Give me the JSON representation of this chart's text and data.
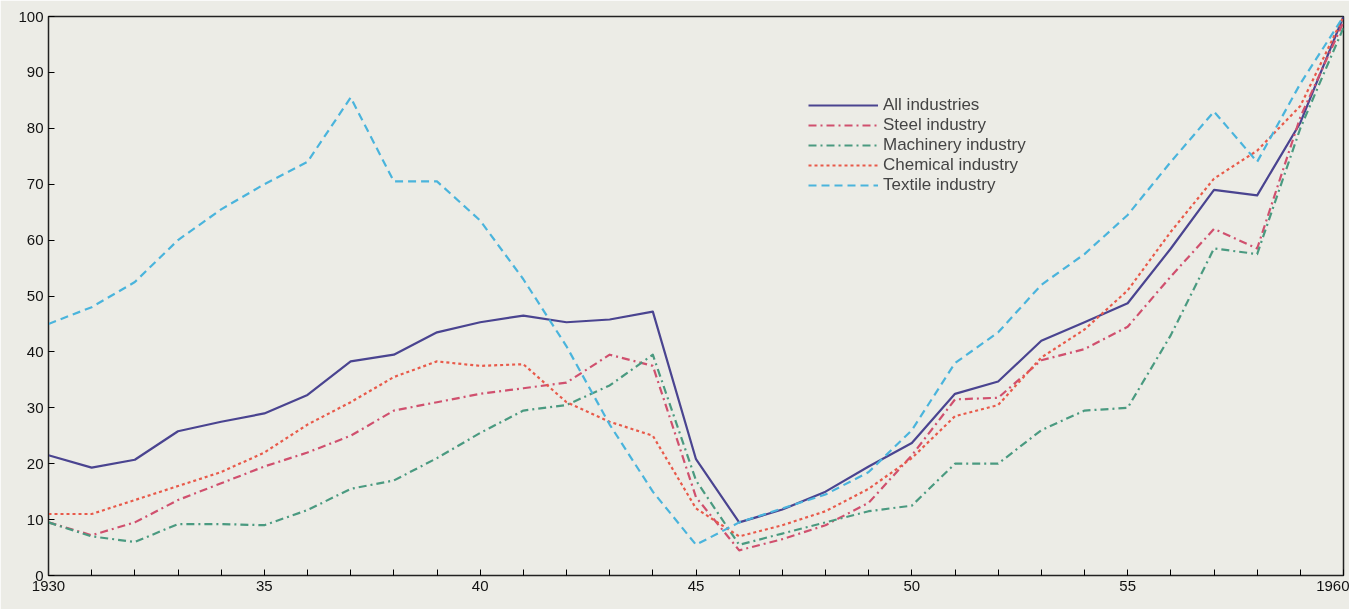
{
  "chart_data": {
    "type": "line",
    "x": [
      1930,
      1931,
      1932,
      1933,
      1934,
      1935,
      1936,
      1937,
      1938,
      1939,
      1940,
      1941,
      1942,
      1943,
      1944,
      1945,
      1946,
      1947,
      1948,
      1949,
      1950,
      1951,
      1952,
      1953,
      1954,
      1955,
      1956,
      1957,
      1958,
      1959,
      1960
    ],
    "series": [
      {
        "name": "All industries",
        "color": "#4a4490",
        "line_style": "solid",
        "values": [
          21.5,
          19.3,
          20.7,
          25.8,
          27.5,
          29,
          32.3,
          38.3,
          39.5,
          43.5,
          45.3,
          46.5,
          45.3,
          45.8,
          47.2,
          20.8,
          9.5,
          11.8,
          15,
          19.5,
          23.7,
          32.5,
          34.7,
          42,
          45.3,
          48.7,
          58.5,
          69,
          68,
          81,
          100
        ]
      },
      {
        "name": "Steel industry",
        "color": "#d0506e",
        "line_style": "dashdot",
        "values": [
          9.5,
          7.2,
          9.5,
          13.5,
          16.5,
          19.5,
          22,
          25,
          29.5,
          31,
          32.5,
          33.5,
          34.5,
          39.5,
          37.5,
          14,
          4.5,
          6.5,
          9,
          13,
          21.5,
          31.5,
          31.8,
          38.5,
          40.5,
          44.5,
          53.5,
          62,
          58.5,
          82,
          99
        ]
      },
      {
        "name": "Machinery industry",
        "color": "#4a9a80",
        "line_style": "dashdot",
        "values": [
          9.5,
          7,
          6,
          9.2,
          9.2,
          9,
          11.7,
          15.5,
          17,
          21,
          25.5,
          29.5,
          30.5,
          34,
          39.5,
          17,
          5.5,
          7.5,
          9.5,
          11.5,
          12.5,
          20,
          20,
          26,
          29.5,
          30,
          43,
          58.5,
          57.5,
          80,
          98
        ]
      },
      {
        "name": "Chemical industry",
        "color": "#e85a4a",
        "line_style": "dotted",
        "values": [
          11,
          11,
          13.5,
          16,
          18.5,
          22,
          27,
          31,
          35.5,
          38.3,
          37.5,
          37.8,
          31,
          27.5,
          25,
          12,
          7,
          9,
          11.5,
          15.5,
          21,
          28.5,
          30.5,
          39,
          44,
          51,
          61.5,
          71,
          76,
          84,
          100
        ]
      },
      {
        "name": "Textile industry",
        "color": "#4ab4dc",
        "line_style": "dashed",
        "values": [
          45,
          48,
          52.5,
          60,
          65.5,
          70,
          74,
          85.5,
          70.5,
          70.5,
          63.5,
          53,
          41,
          27,
          15,
          5.5,
          9.5,
          12,
          14.5,
          18.5,
          26,
          38,
          43.5,
          52,
          57.5,
          64.5,
          74,
          83,
          74,
          88,
          100
        ]
      }
    ],
    "xlim": [
      1930,
      1960
    ],
    "ylim": [
      0,
      100
    ],
    "xticks": [
      {
        "value": 1930,
        "label": "1930"
      },
      {
        "value": 1931,
        "label": null
      },
      {
        "value": 1932,
        "label": null
      },
      {
        "value": 1933,
        "label": null
      },
      {
        "value": 1934,
        "label": null
      },
      {
        "value": 1935,
        "label": "35"
      },
      {
        "value": 1936,
        "label": null
      },
      {
        "value": 1937,
        "label": null
      },
      {
        "value": 1938,
        "label": null
      },
      {
        "value": 1939,
        "label": null
      },
      {
        "value": 1940,
        "label": "40"
      },
      {
        "value": 1941,
        "label": null
      },
      {
        "value": 1942,
        "label": null
      },
      {
        "value": 1943,
        "label": null
      },
      {
        "value": 1944,
        "label": null
      },
      {
        "value": 1945,
        "label": "45"
      },
      {
        "value": 1946,
        "label": null
      },
      {
        "value": 1947,
        "label": null
      },
      {
        "value": 1948,
        "label": null
      },
      {
        "value": 1949,
        "label": null
      },
      {
        "value": 1950,
        "label": "50"
      },
      {
        "value": 1951,
        "label": null
      },
      {
        "value": 1952,
        "label": null
      },
      {
        "value": 1953,
        "label": null
      },
      {
        "value": 1954,
        "label": null
      },
      {
        "value": 1955,
        "label": "55"
      },
      {
        "value": 1956,
        "label": null
      },
      {
        "value": 1957,
        "label": null
      },
      {
        "value": 1958,
        "label": null
      },
      {
        "value": 1959,
        "label": null
      },
      {
        "value": 1960,
        "label": "1960"
      }
    ],
    "yticks": [
      0,
      10,
      20,
      30,
      40,
      50,
      60,
      70,
      80,
      90,
      100
    ],
    "grid": false,
    "legend": "top right",
    "marker": "none"
  }
}
